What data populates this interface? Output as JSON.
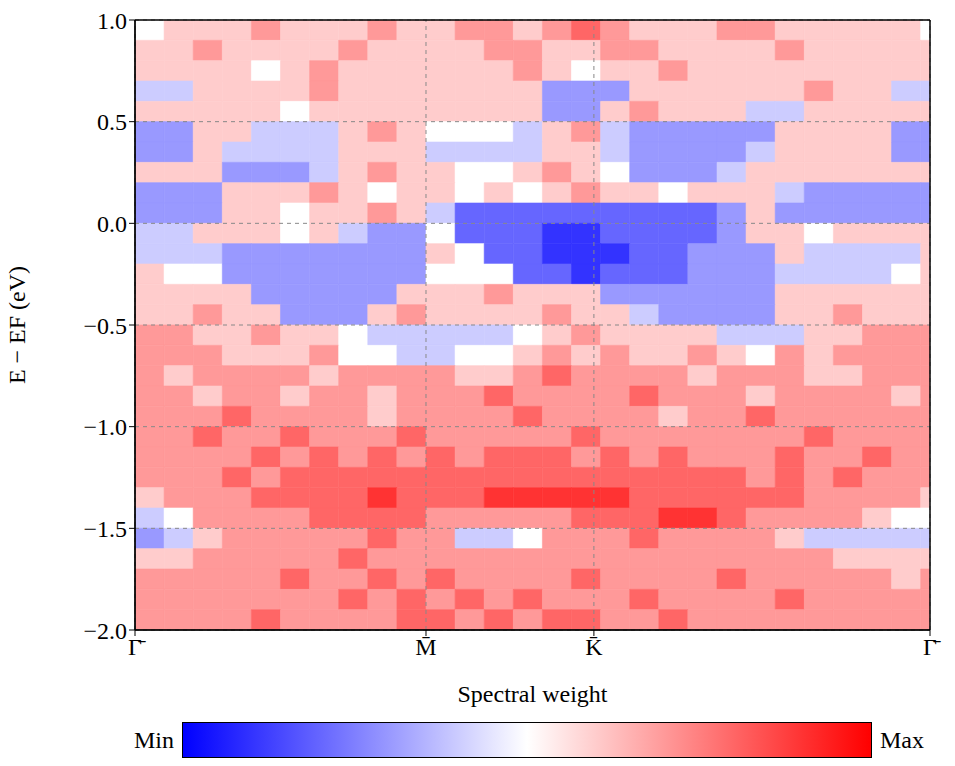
{
  "chart_data": {
    "type": "heatmap",
    "x_label": "Spectral weight",
    "y_label": "E − EF (eV)",
    "xlim": [
      0,
      2.732
    ],
    "ylim": [
      -2,
      1
    ],
    "xticks": [
      {
        "value": 0,
        "label": "Γ̄"
      },
      {
        "value": 1,
        "label": "M̄"
      },
      {
        "value": 1.577,
        "label": "K̄"
      },
      {
        "value": 2.732,
        "label": "Γ̄"
      }
    ],
    "yticks": [
      {
        "value": -2,
        "label": "−2.0"
      },
      {
        "value": -1.5,
        "label": "−1.5"
      },
      {
        "value": -1,
        "label": "−1.0"
      },
      {
        "value": -0.5,
        "label": "−0.5"
      },
      {
        "value": 0,
        "label": "0.0"
      },
      {
        "value": 0.5,
        "label": "0.5"
      },
      {
        "value": 1,
        "label": "1.0"
      }
    ],
    "grid": true,
    "x": [
      0.05,
      0.15,
      0.25,
      0.35,
      0.45,
      0.55,
      0.65,
      0.75,
      0.85,
      0.95,
      1.05,
      1.15,
      1.25,
      1.35,
      1.45,
      1.55,
      1.65,
      1.75,
      1.85,
      1.95,
      2.05,
      2.15,
      2.25,
      2.35,
      2.45,
      2.55,
      2.65,
      2.75
    ],
    "y": [
      0.95,
      0.85,
      0.75,
      0.65,
      0.55,
      0.45,
      0.35,
      0.25,
      0.15,
      0.05,
      -0.05,
      -0.15,
      -0.25,
      -0.35,
      -0.45,
      -0.55,
      -0.65,
      -0.75,
      -0.85,
      -0.95,
      -1.05,
      -1.15,
      -1.25,
      -1.35,
      -1.45,
      -1.55,
      -1.65,
      -1.75,
      -1.85,
      -1.95
    ],
    "z": [
      [
        5,
        6,
        6,
        6,
        7,
        6,
        6,
        6,
        7,
        6,
        6,
        7,
        7,
        6,
        7,
        8,
        7,
        6,
        6,
        6,
        7,
        7,
        6,
        6,
        6,
        6,
        6,
        5
      ],
      [
        6,
        6,
        7,
        6,
        6,
        6,
        6,
        7,
        6,
        6,
        6,
        6,
        7,
        7,
        6,
        6,
        7,
        7,
        6,
        6,
        6,
        6,
        7,
        6,
        6,
        6,
        6,
        6
      ],
      [
        6,
        6,
        6,
        6,
        5,
        6,
        7,
        6,
        6,
        6,
        6,
        6,
        6,
        7,
        6,
        5,
        6,
        6,
        7,
        6,
        6,
        6,
        6,
        6,
        6,
        6,
        6,
        6
      ],
      [
        4,
        4,
        6,
        6,
        6,
        6,
        7,
        6,
        6,
        6,
        6,
        6,
        6,
        6,
        3,
        3,
        3,
        6,
        6,
        6,
        6,
        6,
        6,
        7,
        6,
        6,
        4,
        4
      ],
      [
        6,
        6,
        6,
        6,
        6,
        5,
        6,
        6,
        6,
        6,
        6,
        6,
        6,
        6,
        3,
        3,
        6,
        7,
        6,
        6,
        6,
        4,
        4,
        6,
        6,
        6,
        6,
        6
      ],
      [
        3,
        3,
        6,
        6,
        4,
        4,
        4,
        6,
        7,
        6,
        5,
        5,
        5,
        4,
        6,
        7,
        4,
        3,
        3,
        3,
        3,
        3,
        6,
        6,
        6,
        6,
        3,
        3
      ],
      [
        3,
        3,
        6,
        4,
        4,
        4,
        4,
        6,
        6,
        6,
        4,
        4,
        4,
        4,
        6,
        6,
        4,
        3,
        3,
        3,
        3,
        4,
        6,
        6,
        6,
        6,
        3,
        3
      ],
      [
        6,
        6,
        6,
        3,
        3,
        3,
        4,
        6,
        7,
        6,
        6,
        5,
        5,
        6,
        7,
        6,
        5,
        3,
        3,
        3,
        4,
        6,
        6,
        6,
        6,
        6,
        6,
        6
      ],
      [
        3,
        3,
        3,
        6,
        6,
        6,
        7,
        6,
        5,
        6,
        6,
        5,
        6,
        5,
        6,
        7,
        6,
        6,
        5,
        6,
        6,
        6,
        4,
        3,
        3,
        3,
        3,
        3
      ],
      [
        3,
        3,
        3,
        6,
        6,
        5,
        6,
        6,
        7,
        6,
        4,
        2,
        2,
        2,
        2,
        2,
        2,
        2,
        2,
        2,
        3,
        6,
        3,
        3,
        3,
        3,
        3,
        3
      ],
      [
        4,
        4,
        6,
        6,
        6,
        5,
        6,
        4,
        3,
        3,
        5,
        2,
        2,
        2,
        1,
        1,
        2,
        2,
        2,
        2,
        3,
        6,
        6,
        5,
        6,
        6,
        6,
        6
      ],
      [
        4,
        4,
        4,
        3,
        3,
        3,
        3,
        3,
        3,
        3,
        6,
        5,
        2,
        2,
        1,
        1,
        1,
        2,
        2,
        3,
        3,
        3,
        6,
        4,
        4,
        4,
        4,
        6
      ],
      [
        6,
        5,
        5,
        3,
        3,
        3,
        3,
        3,
        3,
        3,
        5,
        5,
        5,
        2,
        2,
        1,
        2,
        2,
        2,
        3,
        3,
        3,
        4,
        4,
        4,
        4,
        5,
        6
      ],
      [
        6,
        6,
        6,
        6,
        3,
        3,
        3,
        3,
        3,
        6,
        6,
        6,
        7,
        6,
        6,
        6,
        3,
        3,
        3,
        3,
        3,
        3,
        6,
        6,
        6,
        6,
        6,
        6
      ],
      [
        6,
        6,
        7,
        6,
        6,
        3,
        3,
        3,
        6,
        7,
        6,
        6,
        6,
        6,
        7,
        6,
        6,
        4,
        3,
        3,
        3,
        3,
        6,
        6,
        7,
        6,
        6,
        6
      ],
      [
        7,
        7,
        6,
        6,
        7,
        6,
        6,
        5,
        4,
        4,
        4,
        4,
        4,
        5,
        6,
        7,
        6,
        6,
        6,
        6,
        4,
        4,
        4,
        6,
        6,
        7,
        7,
        7
      ],
      [
        7,
        7,
        7,
        6,
        6,
        6,
        7,
        5,
        5,
        4,
        4,
        5,
        5,
        6,
        7,
        6,
        7,
        6,
        6,
        7,
        6,
        5,
        7,
        6,
        7,
        7,
        7,
        7
      ],
      [
        7,
        6,
        7,
        7,
        7,
        7,
        6,
        7,
        7,
        7,
        7,
        6,
        6,
        7,
        8,
        7,
        7,
        7,
        7,
        6,
        7,
        7,
        7,
        6,
        6,
        7,
        7,
        7
      ],
      [
        7,
        7,
        6,
        7,
        7,
        6,
        7,
        7,
        6,
        7,
        7,
        7,
        8,
        7,
        7,
        7,
        7,
        8,
        7,
        7,
        7,
        6,
        7,
        7,
        7,
        7,
        6,
        7
      ],
      [
        7,
        7,
        7,
        8,
        7,
        7,
        7,
        7,
        6,
        7,
        7,
        7,
        7,
        8,
        7,
        7,
        7,
        7,
        6,
        7,
        7,
        8,
        7,
        7,
        7,
        7,
        7,
        7
      ],
      [
        7,
        7,
        8,
        7,
        7,
        8,
        7,
        7,
        7,
        8,
        7,
        7,
        7,
        7,
        7,
        8,
        7,
        7,
        7,
        7,
        7,
        7,
        7,
        8,
        7,
        7,
        7,
        7
      ],
      [
        7,
        7,
        7,
        7,
        8,
        7,
        8,
        7,
        8,
        7,
        8,
        7,
        8,
        8,
        8,
        7,
        8,
        7,
        8,
        7,
        7,
        7,
        8,
        7,
        7,
        8,
        7,
        7
      ],
      [
        7,
        7,
        7,
        8,
        7,
        8,
        8,
        8,
        8,
        8,
        8,
        8,
        8,
        8,
        8,
        8,
        8,
        8,
        8,
        8,
        8,
        7,
        8,
        7,
        8,
        7,
        7,
        7
      ],
      [
        6,
        7,
        7,
        7,
        8,
        8,
        8,
        8,
        9,
        8,
        8,
        8,
        9,
        9,
        9,
        9,
        9,
        8,
        8,
        8,
        8,
        8,
        8,
        7,
        7,
        7,
        7,
        6
      ],
      [
        4,
        5,
        7,
        7,
        7,
        7,
        8,
        8,
        8,
        8,
        7,
        7,
        7,
        7,
        7,
        8,
        8,
        8,
        9,
        9,
        8,
        7,
        7,
        7,
        7,
        6,
        5,
        5
      ],
      [
        3,
        4,
        6,
        7,
        7,
        7,
        7,
        7,
        8,
        7,
        7,
        4,
        4,
        5,
        7,
        7,
        7,
        8,
        7,
        7,
        7,
        7,
        6,
        4,
        4,
        4,
        4,
        4
      ],
      [
        6,
        6,
        7,
        7,
        7,
        7,
        7,
        8,
        7,
        7,
        7,
        7,
        7,
        7,
        7,
        7,
        7,
        7,
        7,
        7,
        7,
        7,
        7,
        7,
        6,
        6,
        6,
        6
      ],
      [
        7,
        7,
        7,
        7,
        7,
        8,
        7,
        7,
        8,
        7,
        8,
        7,
        7,
        7,
        7,
        8,
        7,
        7,
        7,
        7,
        8,
        7,
        7,
        7,
        7,
        7,
        6,
        7
      ],
      [
        7,
        7,
        7,
        7,
        7,
        7,
        7,
        8,
        7,
        8,
        7,
        8,
        7,
        8,
        7,
        7,
        7,
        8,
        7,
        7,
        7,
        7,
        8,
        7,
        7,
        7,
        7,
        7
      ],
      [
        7,
        7,
        7,
        7,
        8,
        7,
        7,
        7,
        7,
        8,
        8,
        7,
        8,
        7,
        8,
        8,
        7,
        7,
        8,
        7,
        7,
        7,
        7,
        7,
        7,
        7,
        7,
        7
      ]
    ],
    "colorbar": {
      "range": [
        0,
        10
      ],
      "ticks": [
        {
          "value": 0,
          "label": "Min"
        },
        {
          "value": 10,
          "label": "Max"
        }
      ],
      "colors": [
        "#0000ff",
        "#ffffff",
        "#ff0000"
      ]
    }
  }
}
